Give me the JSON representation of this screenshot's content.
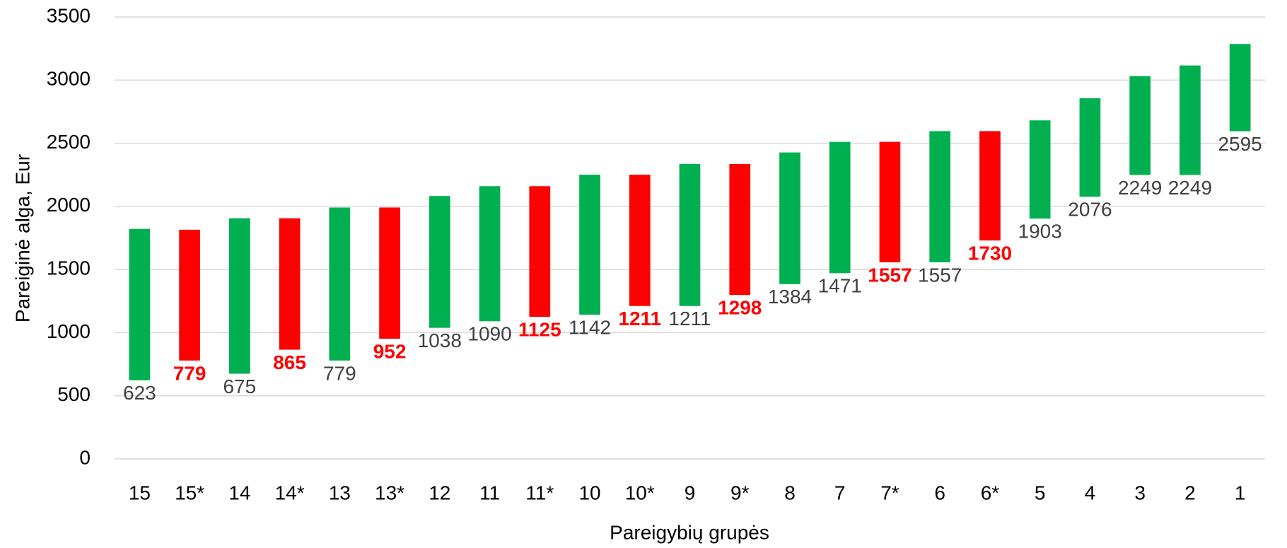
{
  "chart_data": {
    "type": "floating_bar",
    "x_label": "Pareigybių grupės",
    "y_label": "Pareiginė alga, Eur",
    "categories": [
      "15",
      "15*",
      "14",
      "14*",
      "13",
      "13*",
      "12",
      "11",
      "11*",
      "10",
      "10*",
      "9",
      "9*",
      "8",
      "7",
      "7*",
      "6",
      "6*",
      "5",
      "4",
      "3",
      "2",
      "1"
    ],
    "low": [
      623,
      779,
      675,
      865,
      779,
      952,
      1038,
      1090,
      1125,
      1142,
      1211,
      1211,
      1298,
      1384,
      1471,
      1557,
      1557,
      1730,
      1903,
      2076,
      2249,
      2249,
      2595
    ],
    "high": [
      1822,
      1815,
      1906,
      1906,
      1991,
      1991,
      2082,
      2160,
      2160,
      2251,
      2251,
      2336,
      2336,
      2427,
      2511,
      2511,
      2596,
      2596,
      2681,
      2856,
      3032,
      3116,
      3286
    ],
    "bar_colors": [
      "#00b050",
      "#ff0000",
      "#00b050",
      "#ff0000",
      "#00b050",
      "#ff0000",
      "#00b050",
      "#00b050",
      "#ff0000",
      "#00b050",
      "#ff0000",
      "#00b050",
      "#ff0000",
      "#00b050",
      "#00b050",
      "#ff0000",
      "#00b050",
      "#ff0000",
      "#00b050",
      "#00b050",
      "#00b050",
      "#00b050",
      "#00b050"
    ],
    "label_colors": [
      "#404040",
      "#ff0000",
      "#404040",
      "#ff0000",
      "#404040",
      "#ff0000",
      "#404040",
      "#404040",
      "#ff0000",
      "#404040",
      "#ff0000",
      "#404040",
      "#ff0000",
      "#404040",
      "#404040",
      "#ff0000",
      "#404040",
      "#ff0000",
      "#404040",
      "#404040",
      "#404040",
      "#404040",
      "#404040"
    ],
    "ylim": [
      0,
      3500
    ],
    "yticks": [
      0,
      500,
      1000,
      1500,
      2000,
      2500,
      3000,
      3500
    ],
    "grid": true
  }
}
